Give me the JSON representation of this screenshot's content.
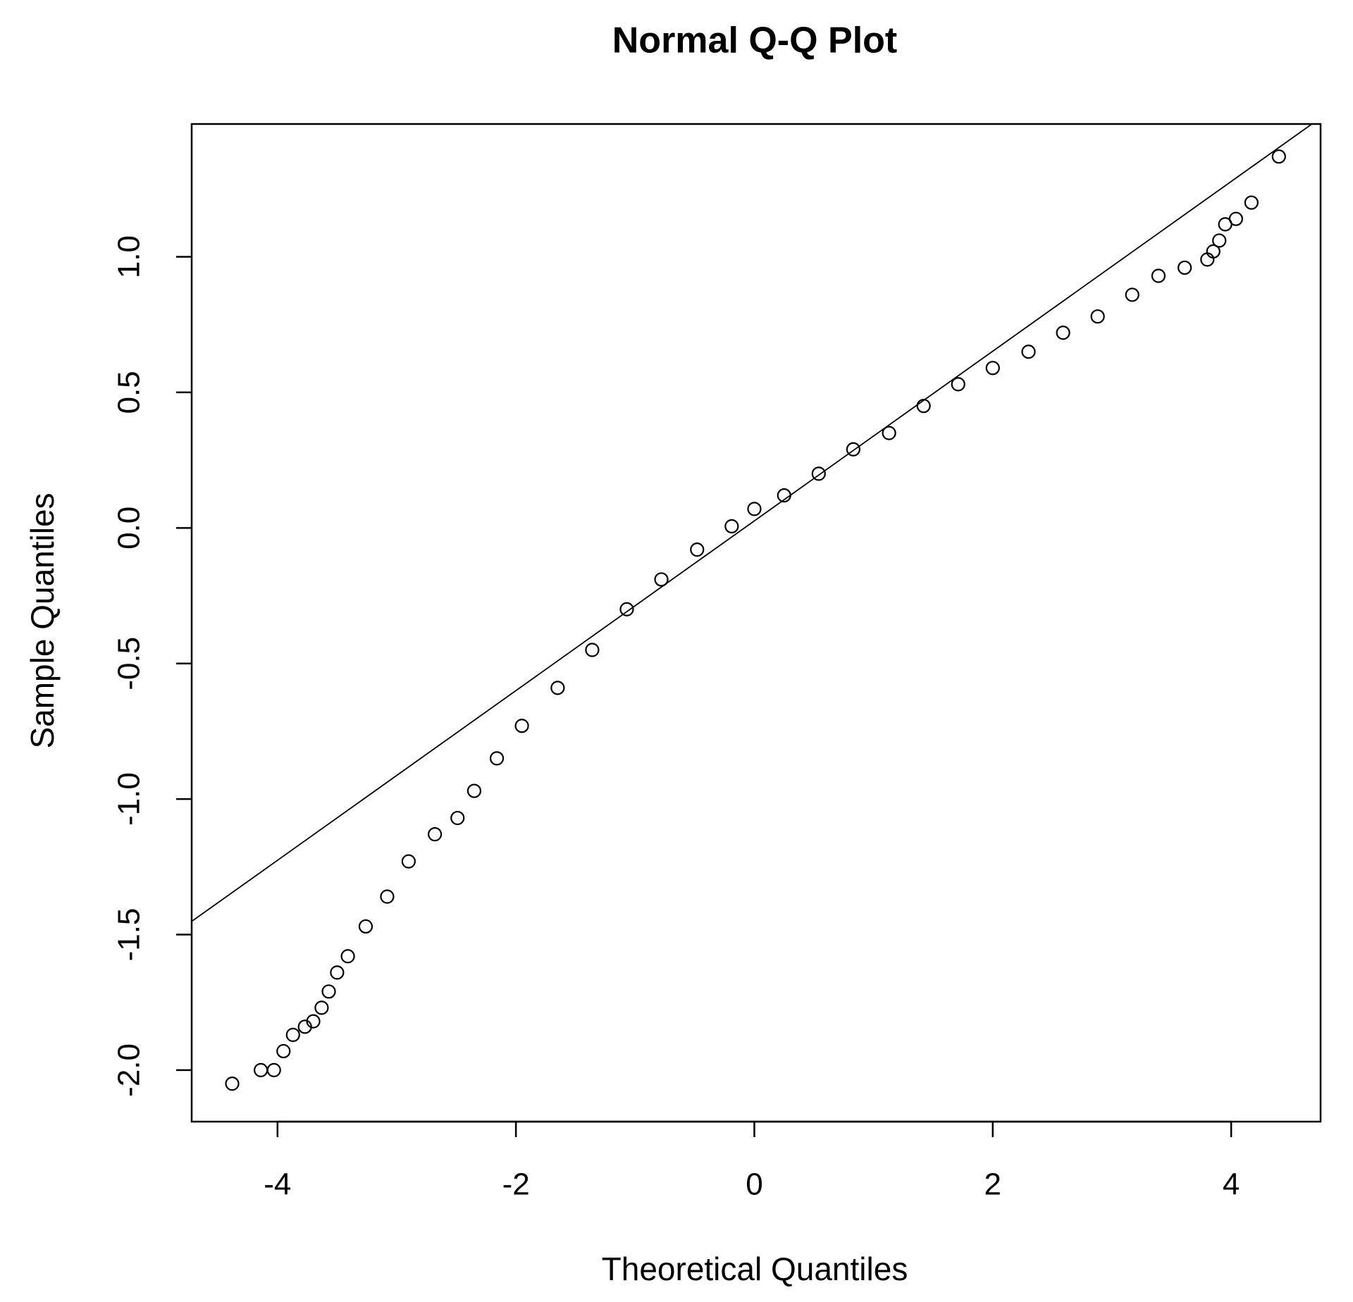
{
  "chart_data": {
    "type": "scatter",
    "title": "Normal Q-Q Plot",
    "x_label": "Theoretical Quantiles",
    "y_label": "Sample Quantiles",
    "x": [
      -4.38,
      -4.14,
      -4.03,
      -3.95,
      -3.87,
      -3.77,
      -3.7,
      -3.63,
      -3.57,
      -3.5,
      -3.41,
      -3.26,
      -3.08,
      -2.9,
      -2.68,
      -2.49,
      -2.35,
      -2.16,
      -1.95,
      -1.65,
      -1.36,
      -1.07,
      -0.78,
      -0.48,
      -0.19,
      0,
      0.25,
      0.54,
      0.83,
      1.13,
      1.42,
      1.71,
      2.0,
      2.3,
      2.59,
      2.88,
      3.17,
      3.39,
      3.61,
      3.8,
      3.85,
      3.9,
      3.95,
      4.04,
      4.17,
      4.4
    ],
    "values": [
      -2.05,
      -2.0,
      -2.0,
      -1.93,
      -1.87,
      -1.84,
      -1.82,
      -1.77,
      -1.71,
      -1.64,
      -1.58,
      -1.47,
      -1.36,
      -1.23,
      -1.13,
      -1.07,
      -0.97,
      -0.85,
      -0.73,
      -0.59,
      -0.45,
      -0.3,
      -0.19,
      -0.08,
      0.006,
      0.07,
      0.12,
      0.2,
      0.29,
      0.35,
      0.45,
      0.53,
      0.59,
      0.65,
      0.72,
      0.78,
      0.86,
      0.93,
      0.96,
      0.99,
      1.02,
      1.06,
      1.12,
      1.14,
      1.2,
      1.37
    ],
    "color": "#000000",
    "reference_line": {
      "intercept": 0.026,
      "slope": 0.313
    },
    "xlim": [
      -4.72,
      4.75
    ],
    "ylim": [
      -2.19,
      1.49
    ],
    "xticks": [
      -4,
      -2,
      0,
      2,
      4
    ],
    "yticks": [
      {
        "value": -2,
        "label": "-2.0"
      },
      {
        "value": -1.5,
        "label": "-1.5"
      },
      {
        "value": -1,
        "label": "-1.0"
      },
      {
        "value": -0.5,
        "label": "-0.5"
      },
      {
        "value": 0,
        "label": "0.0"
      },
      {
        "value": 0.5,
        "label": "0.5"
      },
      {
        "value": 1,
        "label": "1.0"
      }
    ],
    "grid": false
  }
}
